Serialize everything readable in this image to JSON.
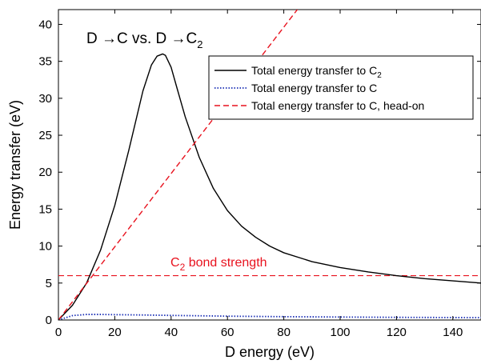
{
  "chart_data": {
    "type": "line",
    "title": "D →C vs. D →C",
    "title_sub": "2",
    "xlabel": "D energy (eV)",
    "ylabel": "Energy transfer (eV)",
    "xlim": [
      0,
      150
    ],
    "ylim": [
      0,
      42
    ],
    "xticks": [
      "0",
      "20",
      "40",
      "60",
      "80",
      "100",
      "120",
      "140"
    ],
    "yticks": [
      "0",
      "5",
      "10",
      "15",
      "20",
      "25",
      "30",
      "35",
      "40"
    ],
    "grid": false,
    "legend_position": "top-right",
    "series": [
      {
        "name": "Total energy transfer to C",
        "name_sub": "2",
        "color": "#000000",
        "style": "solid",
        "x": [
          0,
          5,
          10,
          15,
          20,
          25,
          30,
          33,
          35,
          37,
          38,
          40,
          42,
          45,
          50,
          55,
          60,
          65,
          70,
          75,
          80,
          90,
          100,
          110,
          120,
          130,
          140,
          150
        ],
        "y": [
          0,
          2.0,
          5.0,
          9.5,
          15.5,
          23.0,
          31.0,
          34.5,
          35.7,
          36.0,
          35.8,
          34.2,
          31.5,
          27.5,
          22.0,
          17.8,
          14.8,
          12.7,
          11.2,
          10.0,
          9.1,
          7.9,
          7.1,
          6.5,
          6.0,
          5.6,
          5.3,
          5.0
        ]
      },
      {
        "name": "Total energy transfer to C",
        "name_sub": "",
        "color": "#1a2fb5",
        "style": "dotted",
        "x": [
          0,
          5,
          10,
          15,
          20,
          30,
          40,
          50,
          60,
          80,
          100,
          120,
          150
        ],
        "y": [
          0,
          0.6,
          0.75,
          0.75,
          0.72,
          0.68,
          0.62,
          0.57,
          0.52,
          0.45,
          0.4,
          0.36,
          0.32
        ]
      },
      {
        "name": "Total energy transfer to C, head-on",
        "name_sub": "",
        "color": "#e8121e",
        "style": "dashed",
        "x": [
          0,
          86
        ],
        "y": [
          0,
          42.6
        ]
      }
    ],
    "reference_line": {
      "y": 6,
      "color": "#e8121e",
      "style": "dashed",
      "label_main": "C",
      "label_sub": "2",
      "label_rest": " bond strength"
    }
  }
}
